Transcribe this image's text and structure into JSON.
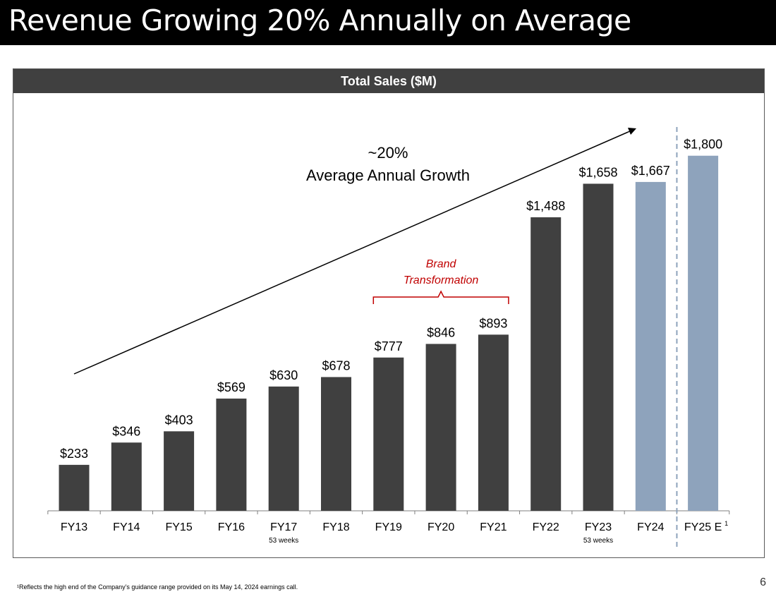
{
  "slide": {
    "title": "Revenue Growing 20% Annually on Average",
    "page_number": "6",
    "footnote": "¹Reflects the high end of the Company’s guidance range provided on its May 14, 2024 earnings call."
  },
  "chart_data": {
    "type": "bar",
    "title": "Total Sales ($M)",
    "categories": [
      "FY13",
      "FY14",
      "FY15",
      "FY16",
      "FY17",
      "FY18",
      "FY19",
      "FY20",
      "FY21",
      "FY22",
      "FY23",
      "FY24",
      "FY25 E"
    ],
    "category_notes": [
      "",
      "",
      "",
      "",
      "53 weeks",
      "",
      "",
      "",
      "",
      "",
      "53 weeks",
      "",
      "1"
    ],
    "values": [
      233,
      346,
      403,
      569,
      630,
      678,
      777,
      846,
      893,
      1488,
      1658,
      1667,
      1800
    ],
    "value_labels": [
      "$233",
      "$346",
      "$403",
      "$569",
      "$630",
      "$678",
      "$777",
      "$846",
      "$893",
      "$1,488",
      "$1,658",
      "$1,667",
      "$1,800"
    ],
    "bar_colors": [
      "#404040",
      "#404040",
      "#404040",
      "#404040",
      "#404040",
      "#404040",
      "#404040",
      "#404040",
      "#404040",
      "#404040",
      "#404040",
      "#8ea3bc",
      "#8ea3bc"
    ],
    "ylim": [
      0,
      2000
    ],
    "xlabel": "",
    "ylabel": "",
    "annotations": {
      "growth_line1": "~20%",
      "growth_line2": "Average Annual Growth",
      "brand_line1": "Brand",
      "brand_line2": "Transformation",
      "brand_span": [
        "FY19",
        "FY21"
      ],
      "separator_between": [
        "FY24",
        "FY25 E"
      ]
    },
    "colors": {
      "dark": "#404040",
      "light": "#8ea3bc",
      "accent": "#c00000",
      "separator": "#8ea3bc"
    }
  }
}
